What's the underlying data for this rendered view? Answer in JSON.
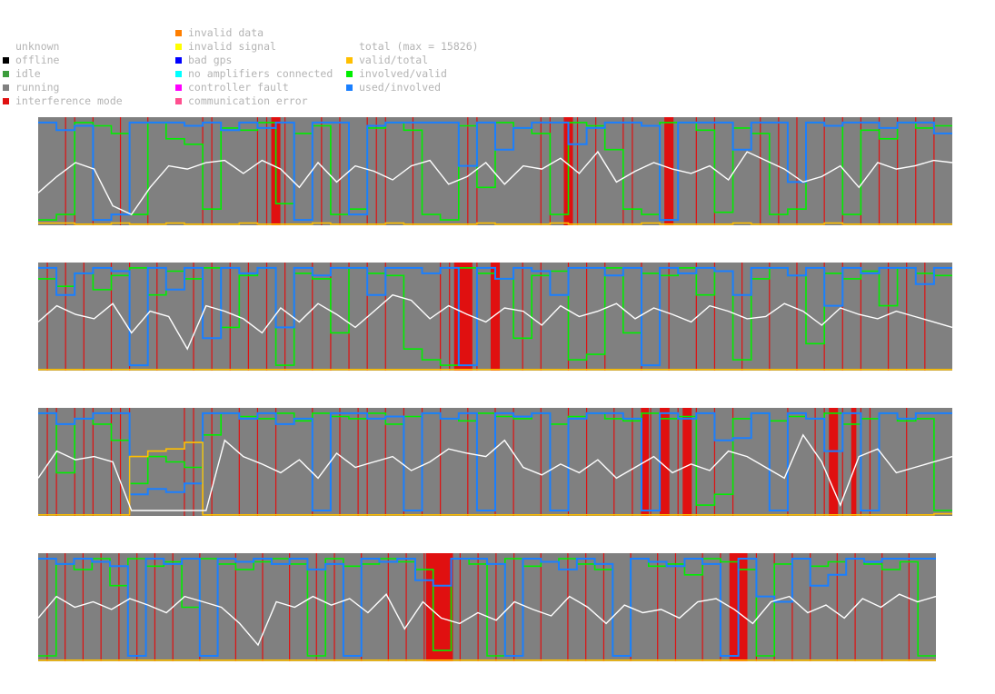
{
  "legend": {
    "status": [
      {
        "label": "",
        "color": null
      },
      {
        "label": "unknown",
        "color": null
      },
      {
        "label": "offline",
        "color": "#000000"
      },
      {
        "label": "idle",
        "color": "#3c9d3c"
      },
      {
        "label": "running",
        "color": "#808080"
      },
      {
        "label": "interference mode",
        "color": "#e01010"
      }
    ],
    "errors": [
      {
        "label": "invalid data",
        "color": "#ff7f00"
      },
      {
        "label": "invalid signal",
        "color": "#ffff00"
      },
      {
        "label": "bad gps",
        "color": "#0000ff"
      },
      {
        "label": "no amplifiers connected",
        "color": "#00ffff"
      },
      {
        "label": "controller fault",
        "color": "#ff00ff"
      },
      {
        "label": "communication error",
        "color": "#ff4f8f"
      }
    ],
    "ratios": [
      {
        "label": "",
        "color": null
      },
      {
        "label": "total (max = 15826)",
        "color": null
      },
      {
        "label": "valid/total",
        "color": "#ffbf00"
      },
      {
        "label": "involved/valid",
        "color": "#00ee00"
      },
      {
        "label": "used/involved",
        "color": "#1a7fff"
      }
    ]
  },
  "chart_data": {
    "type": "line",
    "description_free": true,
    "total_max": 15826,
    "colors": {
      "background": "#808080",
      "interference": "#e01010",
      "total": "#ffffff",
      "valid_total": "#ffbf00",
      "involved_valid": "#00ee00",
      "used_involved": "#1a7fff",
      "bad_gps": "#0000ff"
    },
    "ylim": [
      0,
      1
    ],
    "strips": [
      {
        "total": [
          0.3,
          0.45,
          0.58,
          0.52,
          0.18,
          0.1,
          0.35,
          0.55,
          0.52,
          0.58,
          0.6,
          0.48,
          0.6,
          0.52,
          0.35,
          0.58,
          0.4,
          0.55,
          0.5,
          0.42,
          0.55,
          0.6,
          0.38,
          0.45,
          0.58,
          0.38,
          0.55,
          0.52,
          0.62,
          0.48,
          0.68,
          0.4,
          0.5,
          0.58,
          0.52,
          0.48,
          0.55,
          0.42,
          0.68,
          0.6,
          0.52,
          0.4,
          0.45,
          0.55,
          0.35,
          0.58,
          0.52,
          0.55,
          0.6,
          0.58
        ],
        "involved_valid": [
          0.05,
          0.1,
          0.95,
          0.92,
          0.85,
          0.1,
          0.95,
          0.8,
          0.75,
          0.15,
          0.9,
          0.88,
          0.95,
          0.2,
          0.85,
          0.92,
          0.1,
          0.15,
          0.9,
          0.95,
          0.88,
          0.1,
          0.05,
          0.92,
          0.35,
          0.95,
          0.9,
          0.85,
          0.1,
          0.95,
          0.92,
          0.7,
          0.15,
          0.1,
          0.95,
          0.95,
          0.88,
          0.12,
          0.9,
          0.85,
          0.1,
          0.15,
          0.95,
          0.92,
          0.1,
          0.88,
          0.8,
          0.95,
          0.9,
          0.92
        ],
        "used_involved": [
          0.95,
          0.88,
          0.92,
          0.05,
          0.1,
          0.95,
          0.95,
          0.95,
          0.92,
          0.95,
          0.88,
          0.95,
          0.9,
          0.95,
          0.05,
          0.95,
          0.95,
          0.1,
          0.92,
          0.95,
          0.95,
          0.95,
          0.95,
          0.55,
          0.95,
          0.7,
          0.9,
          0.95,
          0.95,
          0.75,
          0.9,
          0.95,
          0.95,
          0.92,
          0.05,
          0.95,
          0.95,
          0.95,
          0.7,
          0.95,
          0.95,
          0.4,
          0.95,
          0.92,
          0.95,
          0.95,
          0.9,
          0.95,
          0.95,
          0.85
        ],
        "valid_total": [
          0.02,
          0.02,
          0.01,
          0.01,
          0.02,
          0.01,
          0.01,
          0.02,
          0.01,
          0.01,
          0.01,
          0.02,
          0.01,
          0.01,
          0.01,
          0.02,
          0.01,
          0.01,
          0.01,
          0.02,
          0.01,
          0.01,
          0.01,
          0.01,
          0.02,
          0.01,
          0.01,
          0.01,
          0.02,
          0.01,
          0.01,
          0.01,
          0.01,
          0.02,
          0.01,
          0.01,
          0.01,
          0.01,
          0.02,
          0.01,
          0.01,
          0.01,
          0.01,
          0.02,
          0.01,
          0.01,
          0.01,
          0.01,
          0.01,
          0.01
        ],
        "interference": [
          0.03,
          0.04,
          0.06,
          0.09,
          0.12,
          0.18,
          0.19,
          0.24,
          0.25,
          0.27,
          0.31,
          0.33,
          0.36,
          0.37,
          0.38,
          0.41,
          0.47,
          0.48,
          0.55,
          0.56,
          0.58,
          0.59,
          0.61,
          0.64,
          0.65,
          0.69,
          0.72,
          0.74,
          0.79,
          0.81,
          0.83,
          0.86,
          0.88,
          0.9,
          0.92,
          0.94,
          0.96,
          0.98
        ],
        "interference_bands": [
          [
            0.255,
            0.265
          ],
          [
            0.575,
            0.585
          ],
          [
            0.685,
            0.695
          ]
        ]
      },
      {
        "total": [
          0.45,
          0.6,
          0.52,
          0.48,
          0.62,
          0.35,
          0.55,
          0.5,
          0.2,
          0.6,
          0.55,
          0.48,
          0.35,
          0.58,
          0.45,
          0.62,
          0.52,
          0.4,
          0.55,
          0.7,
          0.65,
          0.48,
          0.6,
          0.52,
          0.45,
          0.58,
          0.55,
          0.42,
          0.6,
          0.5,
          0.55,
          0.62,
          0.48,
          0.58,
          0.52,
          0.45,
          0.6,
          0.55,
          0.48,
          0.5,
          0.62,
          0.55,
          0.42,
          0.58,
          0.52,
          0.48,
          0.55,
          0.5,
          0.45,
          0.4
        ],
        "involved_valid": [
          0.85,
          0.78,
          0.9,
          0.75,
          0.88,
          0.95,
          0.7,
          0.92,
          0.85,
          0.95,
          0.4,
          0.88,
          0.95,
          0.05,
          0.9,
          0.85,
          0.35,
          0.95,
          0.9,
          0.88,
          0.2,
          0.1,
          0.05,
          0.95,
          0.9,
          0.85,
          0.3,
          0.88,
          0.92,
          0.1,
          0.15,
          0.95,
          0.35,
          0.9,
          0.88,
          0.95,
          0.7,
          0.92,
          0.1,
          0.85,
          0.95,
          0.88,
          0.25,
          0.9,
          0.85,
          0.92,
          0.6,
          0.95,
          0.9,
          0.88
        ],
        "used_involved": [
          0.95,
          0.7,
          0.9,
          0.95,
          0.92,
          0.05,
          0.95,
          0.75,
          0.95,
          0.3,
          0.95,
          0.9,
          0.95,
          0.4,
          0.95,
          0.88,
          0.95,
          0.95,
          0.7,
          0.95,
          0.95,
          0.9,
          0.95,
          0.05,
          0.95,
          0.85,
          0.95,
          0.92,
          0.7,
          0.95,
          0.95,
          0.88,
          0.95,
          0.05,
          0.95,
          0.9,
          0.95,
          0.92,
          0.7,
          0.95,
          0.95,
          0.88,
          0.95,
          0.6,
          0.95,
          0.9,
          0.95,
          0.95,
          0.8,
          0.95
        ],
        "valid_total": [
          0.01,
          0.01,
          0.01,
          0.01,
          0.01,
          0.01,
          0.01,
          0.01,
          0.01,
          0.01,
          0.01,
          0.01,
          0.01,
          0.01,
          0.01,
          0.01,
          0.01,
          0.01,
          0.01,
          0.01,
          0.01,
          0.01,
          0.01,
          0.01,
          0.01,
          0.01,
          0.01,
          0.01,
          0.01,
          0.01,
          0.01,
          0.01,
          0.01,
          0.01,
          0.01,
          0.01,
          0.01,
          0.01,
          0.01,
          0.01,
          0.01,
          0.01,
          0.01,
          0.01,
          0.01,
          0.01,
          0.01,
          0.01,
          0.01,
          0.01
        ],
        "interference": [
          0.01,
          0.03,
          0.05,
          0.08,
          0.1,
          0.13,
          0.17,
          0.19,
          0.21,
          0.23,
          0.25,
          0.27,
          0.3,
          0.32,
          0.34,
          0.36,
          0.38,
          0.44,
          0.45,
          0.46,
          0.47,
          0.48,
          0.5,
          0.53,
          0.55,
          0.58,
          0.6,
          0.62,
          0.66,
          0.69,
          0.72,
          0.74,
          0.77,
          0.8,
          0.83,
          0.86,
          0.88,
          0.9,
          0.93,
          0.95,
          0.97
        ],
        "interference_bands": [
          [
            0.455,
            0.475
          ],
          [
            0.495,
            0.505
          ]
        ]
      },
      {
        "total": [
          0.35,
          0.6,
          0.52,
          0.55,
          0.5,
          0.05,
          0.05,
          0.05,
          0.05,
          0.05,
          0.7,
          0.55,
          0.48,
          0.4,
          0.52,
          0.35,
          0.58,
          0.45,
          0.5,
          0.55,
          0.42,
          0.5,
          0.62,
          0.58,
          0.55,
          0.7,
          0.45,
          0.38,
          0.48,
          0.4,
          0.52,
          0.35,
          0.45,
          0.55,
          0.4,
          0.48,
          0.42,
          0.6,
          0.55,
          0.45,
          0.35,
          0.75,
          0.5,
          0.1,
          0.55,
          0.62,
          0.4,
          0.45,
          0.5,
          0.55
        ],
        "involved_valid": [
          0.95,
          0.4,
          0.9,
          0.85,
          0.7,
          0.3,
          0.55,
          0.5,
          0.45,
          0.75,
          0.95,
          0.92,
          0.9,
          0.95,
          0.88,
          0.95,
          0.92,
          0.9,
          0.95,
          0.85,
          0.92,
          0.95,
          0.9,
          0.88,
          0.95,
          0.92,
          0.9,
          0.95,
          0.85,
          0.92,
          0.95,
          0.9,
          0.88,
          0.95,
          0.9,
          0.92,
          0.1,
          0.2,
          0.9,
          0.95,
          0.88,
          0.92,
          0.9,
          0.95,
          0.85,
          0.9,
          0.95,
          0.88,
          0.9,
          0.05
        ],
        "used_involved": [
          0.95,
          0.85,
          0.9,
          0.95,
          0.95,
          0.2,
          0.25,
          0.22,
          0.3,
          0.95,
          0.95,
          0.9,
          0.95,
          0.85,
          0.9,
          0.05,
          0.95,
          0.95,
          0.9,
          0.92,
          0.05,
          0.95,
          0.9,
          0.95,
          0.05,
          0.95,
          0.92,
          0.95,
          0.05,
          0.9,
          0.95,
          0.95,
          0.9,
          0.05,
          0.95,
          0.9,
          0.95,
          0.7,
          0.72,
          0.95,
          0.05,
          0.95,
          0.9,
          0.6,
          0.95,
          0.05,
          0.95,
          0.9,
          0.95,
          0.95
        ],
        "valid_total": [
          0.01,
          0.01,
          0.01,
          0.01,
          0.01,
          0.55,
          0.6,
          0.62,
          0.68,
          0.01,
          0.01,
          0.01,
          0.01,
          0.01,
          0.01,
          0.01,
          0.01,
          0.01,
          0.01,
          0.01,
          0.01,
          0.01,
          0.01,
          0.01,
          0.01,
          0.01,
          0.01,
          0.01,
          0.01,
          0.01,
          0.01,
          0.01,
          0.01,
          0.01,
          0.01,
          0.01,
          0.01,
          0.01,
          0.01,
          0.01,
          0.01,
          0.01,
          0.01,
          0.01,
          0.01,
          0.01,
          0.01,
          0.01,
          0.01,
          0.02
        ],
        "interference": [
          0.01,
          0.02,
          0.04,
          0.05,
          0.06,
          0.08,
          0.09,
          0.1,
          0.16,
          0.17,
          0.19,
          0.22,
          0.24,
          0.26,
          0.3,
          0.33,
          0.35,
          0.36,
          0.38,
          0.4,
          0.42,
          0.44,
          0.47,
          0.5,
          0.52,
          0.55,
          0.58,
          0.6,
          0.63,
          0.65,
          0.66,
          0.67,
          0.69,
          0.7,
          0.71,
          0.72,
          0.74,
          0.76,
          0.82,
          0.85,
          0.86,
          0.87,
          0.88,
          0.89,
          0.9,
          0.91,
          0.95
        ],
        "interference_bands": [
          [
            0.66,
            0.668
          ],
          [
            0.68,
            0.69
          ],
          [
            0.705,
            0.715
          ],
          [
            0.865,
            0.875
          ],
          [
            0.89,
            0.895
          ]
        ]
      },
      {
        "total": [
          0.4,
          0.6,
          0.5,
          0.55,
          0.48,
          0.58,
          0.52,
          0.45,
          0.6,
          0.55,
          0.5,
          0.35,
          0.15,
          0.55,
          0.5,
          0.6,
          0.52,
          0.58,
          0.45,
          0.62,
          0.3,
          0.55,
          0.4,
          0.35,
          0.45,
          0.38,
          0.55,
          0.48,
          0.42,
          0.6,
          0.5,
          0.35,
          0.52,
          0.45,
          0.48,
          0.4,
          0.55,
          0.58,
          0.48,
          0.35,
          0.55,
          0.6,
          0.45,
          0.52,
          0.4,
          0.58,
          0.5,
          0.62,
          0.55,
          0.6
        ],
        "involved_valid": [
          0.05,
          0.9,
          0.85,
          0.95,
          0.7,
          0.95,
          0.88,
          0.92,
          0.5,
          0.95,
          0.9,
          0.85,
          0.92,
          0.95,
          0.9,
          0.05,
          0.95,
          0.88,
          0.9,
          0.95,
          0.92,
          0.85,
          0.1,
          0.95,
          0.9,
          0.05,
          0.95,
          0.88,
          0.92,
          0.95,
          0.9,
          0.85,
          0.05,
          0.95,
          0.88,
          0.9,
          0.8,
          0.95,
          0.92,
          0.85,
          0.05,
          0.9,
          0.95,
          0.88,
          0.92,
          0.95,
          0.9,
          0.85,
          0.92,
          0.05
        ],
        "used_involved": [
          0.95,
          0.9,
          0.95,
          0.92,
          0.88,
          0.05,
          0.95,
          0.9,
          0.95,
          0.05,
          0.95,
          0.92,
          0.95,
          0.9,
          0.95,
          0.85,
          0.9,
          0.05,
          0.95,
          0.92,
          0.95,
          0.75,
          0.7,
          0.95,
          0.95,
          0.9,
          0.05,
          0.95,
          0.92,
          0.85,
          0.95,
          0.9,
          0.05,
          0.95,
          0.92,
          0.88,
          0.95,
          0.9,
          0.05,
          0.95,
          0.6,
          0.55,
          0.95,
          0.7,
          0.8,
          0.95,
          0.92,
          0.95,
          0.95,
          0.95
        ],
        "valid_total": [
          0.01,
          0.01,
          0.01,
          0.01,
          0.01,
          0.01,
          0.01,
          0.01,
          0.01,
          0.01,
          0.01,
          0.01,
          0.01,
          0.01,
          0.01,
          0.01,
          0.01,
          0.01,
          0.01,
          0.01,
          0.01,
          0.01,
          0.01,
          0.01,
          0.01,
          0.01,
          0.01,
          0.01,
          0.01,
          0.01,
          0.01,
          0.01,
          0.01,
          0.01,
          0.01,
          0.01,
          0.01,
          0.01,
          0.01,
          0.01,
          0.01,
          0.01,
          0.01,
          0.01,
          0.01,
          0.01,
          0.01,
          0.01,
          0.01,
          0.01
        ],
        "interference": [
          0.01,
          0.03,
          0.05,
          0.07,
          0.09,
          0.11,
          0.13,
          0.15,
          0.18,
          0.22,
          0.25,
          0.28,
          0.31,
          0.33,
          0.36,
          0.39,
          0.41,
          0.43,
          0.45,
          0.47,
          0.49,
          0.51,
          0.53,
          0.56,
          0.59,
          0.61,
          0.63,
          0.66,
          0.69,
          0.71,
          0.74,
          0.76,
          0.78,
          0.8,
          0.82,
          0.84,
          0.86,
          0.89,
          0.91,
          0.94,
          0.97
        ],
        "interference_bands": [
          [
            0.432,
            0.462
          ],
          [
            0.77,
            0.79
          ]
        ]
      }
    ]
  }
}
